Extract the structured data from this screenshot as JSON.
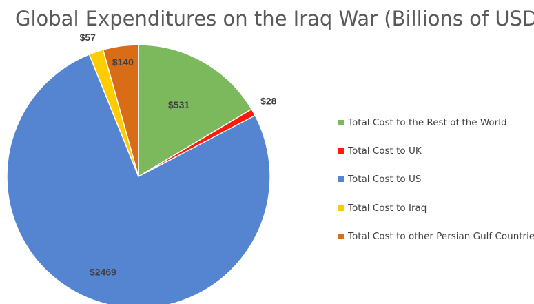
{
  "chart_data": {
    "type": "pie",
    "title": "Global Expenditures on the Iraq War (Billions of USD)",
    "slices": [
      {
        "name": "Total Cost to the Rest of the World",
        "value": 531,
        "label": "$531",
        "color": "#7cb85c"
      },
      {
        "name": "Total Cost to UK",
        "value": 28,
        "label": "$28",
        "color": "#ff1a0a"
      },
      {
        "name": "Total Cost to US",
        "value": 2469,
        "label": "$2469",
        "color": "#5585d0"
      },
      {
        "name": "Total Cost to Iraq",
        "value": 57,
        "label": "$57",
        "color": "#ffcc00"
      },
      {
        "name": "Total Cost to other Persian Gulf Countries",
        "value": 140,
        "label": "$140",
        "color": "#d96c17"
      }
    ],
    "legend_position": "right"
  }
}
